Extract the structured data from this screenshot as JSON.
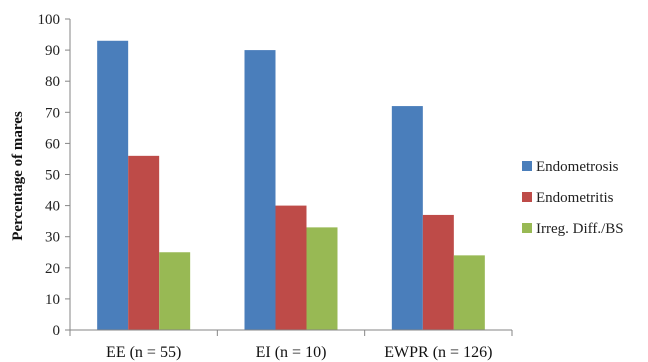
{
  "chart_data": {
    "type": "bar",
    "title": "",
    "xlabel": "",
    "ylabel": "Percentage of mares",
    "ylim": [
      0,
      100
    ],
    "yticks": [
      0,
      10,
      20,
      30,
      40,
      50,
      60,
      70,
      80,
      90,
      100
    ],
    "categories": [
      "EE (n = 55)",
      "EI (n = 10)",
      "EWPR (n = 126)"
    ],
    "series": [
      {
        "name": "Endometrosis",
        "color": "#4a7ebb",
        "values": [
          93,
          90,
          72
        ]
      },
      {
        "name": "Endometritis",
        "color": "#be4b48",
        "values": [
          56,
          40,
          37
        ]
      },
      {
        "name": "Irreg. Diff./BS",
        "color": "#98b954",
        "values": [
          25,
          33,
          24
        ]
      }
    ],
    "grid": false,
    "legend_position": "right"
  }
}
